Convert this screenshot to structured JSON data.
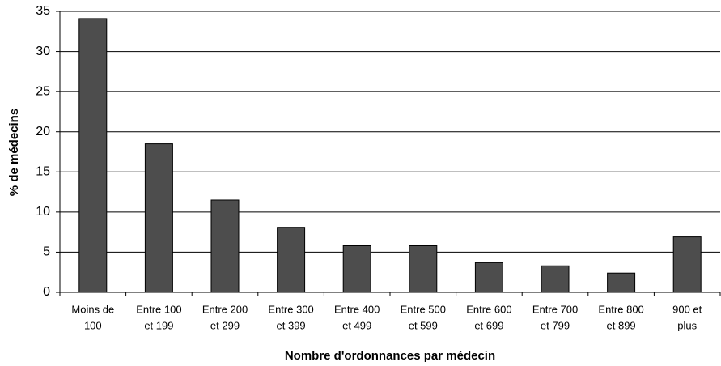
{
  "chart_data": {
    "type": "bar",
    "ylabel": "% de médecins",
    "xlabel": "Nombre d'ordonnances par médecin",
    "categories": [
      [
        "Moins de",
        "100"
      ],
      [
        "Entre 100",
        "et 199"
      ],
      [
        "Entre 200",
        "et 299"
      ],
      [
        "Entre 300",
        "et 399"
      ],
      [
        "Entre 400",
        "et 499"
      ],
      [
        "Entre 500",
        "et 599"
      ],
      [
        "Entre 600",
        "et 699"
      ],
      [
        "Entre 700",
        "et 799"
      ],
      [
        "Entre 800",
        "et 899"
      ],
      [
        "900 et",
        "plus"
      ]
    ],
    "values": [
      34.1,
      18.5,
      11.5,
      8.1,
      5.8,
      5.8,
      3.7,
      3.3,
      2.4,
      6.9
    ],
    "color": "#4d4d4d",
    "ylim": [
      0,
      35
    ],
    "yticks": [
      0,
      5,
      10,
      15,
      20,
      25,
      30,
      35
    ],
    "grid": true
  }
}
